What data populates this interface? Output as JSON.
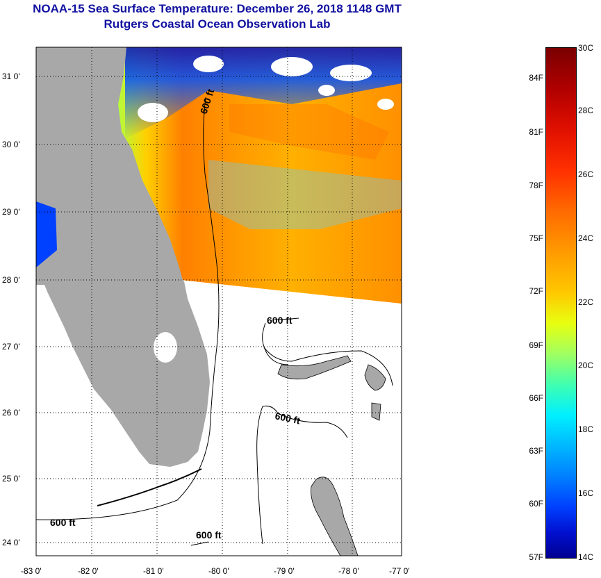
{
  "header": {
    "title_line1": "NOAA-15 Sea Surface Temperature:  December 26, 2018 1148 GMT",
    "title_line2": "Rutgers Coastal Ocean Observation Lab"
  },
  "map": {
    "lat_labels": [
      "31 0'",
      "30 0'",
      "29 0'",
      "28 0'",
      "27 0'",
      "26 0'",
      "25 0'",
      "24 0'"
    ],
    "lon_labels": [
      "-83 0'",
      "-82 0'",
      "-81 0'",
      "-80 0'",
      "-79 0'",
      "-78 0'",
      "-77 0'"
    ],
    "contour_label": "600 ft",
    "colors": {
      "land": "#a8a8a8",
      "nodata": "#ffffff",
      "grid": "#000000"
    }
  },
  "colorbar": {
    "fahrenheit": [
      "84F",
      "81F",
      "78F",
      "75F",
      "72F",
      "69F",
      "66F",
      "63F",
      "60F",
      "57F"
    ],
    "celsius": [
      "30C",
      "28C",
      "26C",
      "24C",
      "22C",
      "20C",
      "18C",
      "16C",
      "14C"
    ]
  }
}
